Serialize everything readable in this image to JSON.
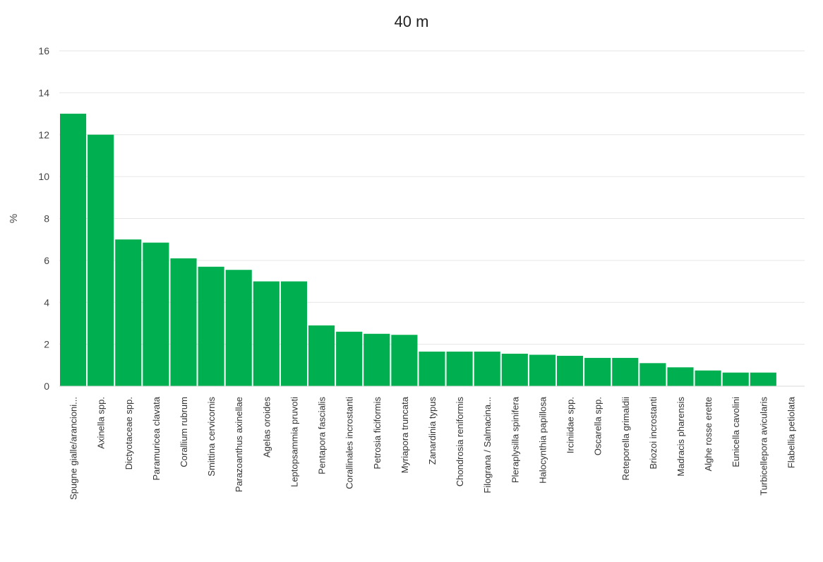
{
  "chart_data": {
    "type": "bar",
    "title": "40 m",
    "ylabel": "%",
    "xlabel": "",
    "ylim": [
      0,
      16
    ],
    "yticks": [
      0,
      2,
      4,
      6,
      8,
      10,
      12,
      14,
      16
    ],
    "grid": true,
    "bar_color": "#00b050",
    "categories": [
      "Spugne gialle/arancioni...",
      "Axinella spp.",
      "Dictyotaceae spp.",
      "Paramuricea clavata",
      "Corallium rubrum",
      "Smittina cervicornis",
      "Parazoanthus axinellae",
      "Agelas oroides",
      "Leptopsammia pruvoti",
      "Pentapora fascialis",
      "Corallinales incrostanti",
      "Petrosia ficiformis",
      "Myriapora truncata",
      "Zanardinia typus",
      "Chondrosia reniformis",
      "Filograna / Salmacina...",
      "Pleraplysilla spinifera",
      "Halocynthia papillosa",
      "Irciniidae spp.",
      "Oscarella spp.",
      "Reteporella grimaldii",
      "Briozoi incrostanti",
      "Madracis pharensis",
      "Alghe rosse erette",
      "Eunicella cavolini",
      "Turbicellepora avicularis",
      "Flabellia petiolata"
    ],
    "values": [
      13.0,
      12.0,
      7.0,
      6.85,
      6.1,
      5.7,
      5.55,
      5.0,
      5.0,
      2.9,
      2.6,
      2.5,
      2.45,
      1.65,
      1.65,
      1.65,
      1.55,
      1.5,
      1.45,
      1.35,
      1.35,
      1.1,
      0.9,
      0.75,
      0.65,
      0.65,
      0.0
    ]
  }
}
